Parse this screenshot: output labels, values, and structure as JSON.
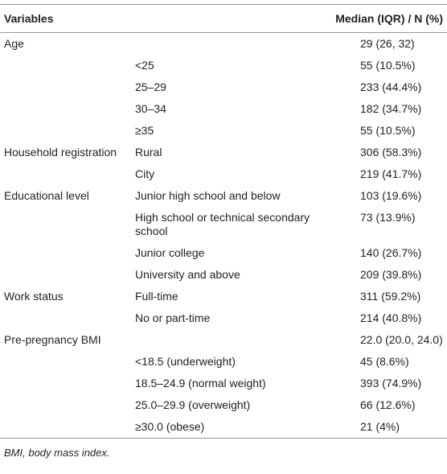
{
  "table": {
    "header": [
      "Variables",
      "Median (IQR) / N (%)"
    ],
    "rows": [
      [
        "Age",
        null,
        "29 (26, 32)"
      ],
      [
        null,
        "<25",
        "55 (10.5%)"
      ],
      [
        null,
        "25–29",
        "233 (44.4%)"
      ],
      [
        null,
        "30–34",
        "182 (34.7%)"
      ],
      [
        null,
        "≥35",
        "55 (10.5%)"
      ],
      [
        "Household registration",
        "Rural",
        "306 (58.3%)"
      ],
      [
        null,
        "City",
        "219 (41.7%)"
      ],
      [
        "Educational level",
        "Junior high school and below",
        "103 (19.6%)"
      ],
      [
        null,
        "High school or technical secondary school",
        "73 (13.9%)"
      ],
      [
        null,
        "Junior college",
        "140 (26.7%)"
      ],
      [
        null,
        "University and above",
        "209 (39.8%)"
      ],
      [
        "Work status",
        "Full-time",
        "311 (59.2%)"
      ],
      [
        null,
        "No or part-time",
        "214 (40.8%)"
      ],
      [
        "Pre-pregnancy BMI",
        null,
        "22.0 (20.0, 24.0)"
      ],
      [
        null,
        "<18.5 (underweight)",
        "45 (8.6%)"
      ],
      [
        null,
        "18.5–24.9 (normal weight)",
        "393 (74.9%)"
      ],
      [
        null,
        "25.0–29.9 (overweight)",
        "66 (12.6%)"
      ],
      [
        null,
        "≥30.0 (obese)",
        "21 (4%)"
      ]
    ]
  },
  "footnote": "BMI, body mass index."
}
